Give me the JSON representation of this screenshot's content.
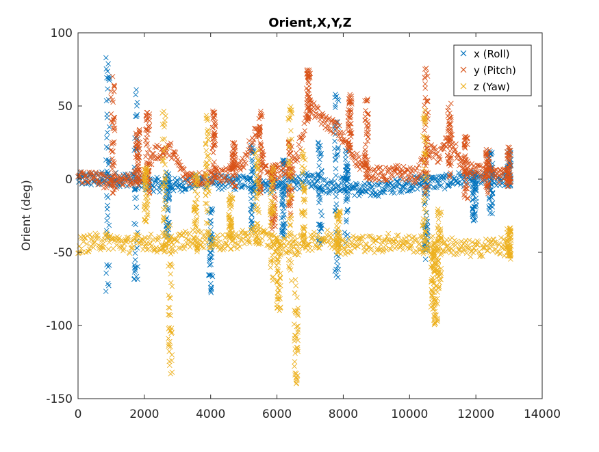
{
  "chart_data": {
    "type": "scatter",
    "title": "Orient,X,Y,Z",
    "xlabel": "",
    "ylabel": "Orient (deg)",
    "xlim": [
      0,
      14000
    ],
    "ylim": [
      -150,
      100
    ],
    "xticks": [
      0,
      2000,
      4000,
      6000,
      8000,
      10000,
      12000,
      14000
    ],
    "xtick_labels": [
      "0",
      "2000",
      "4000",
      "6000",
      "8000",
      "10000",
      "12000",
      "14000"
    ],
    "yticks": [
      100,
      50,
      0,
      -50,
      -100,
      -150
    ],
    "ytick_labels": [
      "100",
      "50",
      "0",
      "-50",
      "-100",
      "-150"
    ],
    "marker": "x",
    "grid": false,
    "legend_position": "top-right",
    "series": [
      {
        "name": "x (Roll)",
        "color": "#0072BD",
        "base": [
          [
            0,
            0
          ],
          [
            500,
            0
          ],
          [
            1000,
            0
          ],
          [
            1500,
            0
          ],
          [
            2000,
            -3
          ],
          [
            2500,
            -4
          ],
          [
            3000,
            -4
          ],
          [
            3500,
            -2
          ],
          [
            4000,
            -1
          ],
          [
            4500,
            -3
          ],
          [
            5000,
            -2
          ],
          [
            5500,
            -4
          ],
          [
            6000,
            -5
          ],
          [
            6500,
            -3
          ],
          [
            7000,
            0
          ],
          [
            7500,
            -5
          ],
          [
            8000,
            -3
          ],
          [
            8500,
            -8
          ],
          [
            9000,
            -7
          ],
          [
            9500,
            -5
          ],
          [
            10000,
            -3
          ],
          [
            10500,
            -2
          ],
          [
            11000,
            -2
          ],
          [
            11500,
            0
          ],
          [
            12000,
            0
          ],
          [
            12500,
            0
          ],
          [
            13000,
            0
          ]
        ],
        "noise": 5,
        "spikes": [
          {
            "x": 900,
            "lo": -77,
            "hi": 88
          },
          {
            "x": 1750,
            "lo": -70,
            "hi": 64
          },
          {
            "x": 2700,
            "lo": -40,
            "hi": 5
          },
          {
            "x": 4000,
            "lo": -78,
            "hi": -18
          },
          {
            "x": 5250,
            "lo": -35,
            "hi": 25
          },
          {
            "x": 6200,
            "lo": -40,
            "hi": 15
          },
          {
            "x": 7300,
            "lo": -45,
            "hi": 30
          },
          {
            "x": 7800,
            "lo": -78,
            "hi": 58
          },
          {
            "x": 8100,
            "lo": -45,
            "hi": 20
          },
          {
            "x": 10500,
            "lo": -55,
            "hi": 5
          },
          {
            "x": 11950,
            "lo": -30,
            "hi": 5
          },
          {
            "x": 12450,
            "lo": -25,
            "hi": 20
          },
          {
            "x": 13000,
            "lo": -5,
            "hi": 20
          }
        ]
      },
      {
        "name": "y (Pitch)",
        "color": "#D95319",
        "base": [
          [
            0,
            2
          ],
          [
            500,
            1
          ],
          [
            900,
            -2
          ],
          [
            1050,
            -5
          ],
          [
            1200,
            0
          ],
          [
            1600,
            0
          ],
          [
            2000,
            2
          ],
          [
            2300,
            18
          ],
          [
            2800,
            20
          ],
          [
            3200,
            3
          ],
          [
            3600,
            0
          ],
          [
            4000,
            2
          ],
          [
            4500,
            3
          ],
          [
            5000,
            12
          ],
          [
            5400,
            35
          ],
          [
            5700,
            2
          ],
          [
            6000,
            5
          ],
          [
            6500,
            8
          ],
          [
            7000,
            50
          ],
          [
            7400,
            40
          ],
          [
            7800,
            35
          ],
          [
            8200,
            20
          ],
          [
            8700,
            5
          ],
          [
            9200,
            3
          ],
          [
            9700,
            5
          ],
          [
            10200,
            2
          ],
          [
            10600,
            20
          ],
          [
            10900,
            15
          ],
          [
            11200,
            30
          ],
          [
            11600,
            8
          ],
          [
            12000,
            5
          ],
          [
            12500,
            3
          ],
          [
            13000,
            2
          ]
        ],
        "noise": 5,
        "spikes": [
          {
            "x": 1050,
            "lo": -12,
            "hi": 72
          },
          {
            "x": 1800,
            "lo": -5,
            "hi": 35
          },
          {
            "x": 2100,
            "lo": -10,
            "hi": 48
          },
          {
            "x": 4100,
            "lo": 0,
            "hi": 47
          },
          {
            "x": 4700,
            "lo": -5,
            "hi": 25
          },
          {
            "x": 5500,
            "lo": -10,
            "hi": 48
          },
          {
            "x": 5900,
            "lo": -35,
            "hi": 10
          },
          {
            "x": 6400,
            "lo": -25,
            "hi": 28
          },
          {
            "x": 6950,
            "lo": 40,
            "hi": 76
          },
          {
            "x": 8200,
            "lo": 20,
            "hi": 58
          },
          {
            "x": 8700,
            "lo": 0,
            "hi": 55
          },
          {
            "x": 10500,
            "lo": -10,
            "hi": 76
          },
          {
            "x": 11200,
            "lo": 0,
            "hi": 52
          },
          {
            "x": 11700,
            "lo": -15,
            "hi": 30
          },
          {
            "x": 12350,
            "lo": -10,
            "hi": 22
          },
          {
            "x": 13000,
            "lo": -5,
            "hi": 22
          }
        ]
      },
      {
        "name": "z (Yaw)",
        "color": "#EDB120",
        "base": [
          [
            0,
            -45
          ],
          [
            500,
            -43
          ],
          [
            1000,
            -42
          ],
          [
            1500,
            -45
          ],
          [
            2000,
            -42
          ],
          [
            2500,
            -45
          ],
          [
            3000,
            -43
          ],
          [
            3500,
            -40
          ],
          [
            4000,
            -42
          ],
          [
            4500,
            -44
          ],
          [
            5000,
            -40
          ],
          [
            5500,
            -38
          ],
          [
            6000,
            -45
          ],
          [
            6500,
            -45
          ],
          [
            7000,
            -43
          ],
          [
            7500,
            -40
          ],
          [
            8000,
            -46
          ],
          [
            8500,
            -43
          ],
          [
            9000,
            -45
          ],
          [
            9500,
            -42
          ],
          [
            10000,
            -44
          ],
          [
            10500,
            -45
          ],
          [
            11000,
            -44
          ],
          [
            11500,
            -47
          ],
          [
            12000,
            -48
          ],
          [
            12500,
            -45
          ],
          [
            13000,
            -47
          ]
        ],
        "noise": 6,
        "spikes": [
          {
            "x": 2050,
            "lo": -30,
            "hi": 10
          },
          {
            "x": 2600,
            "lo": -50,
            "hi": 50
          },
          {
            "x": 2780,
            "lo": -135,
            "hi": -30
          },
          {
            "x": 3550,
            "lo": -50,
            "hi": 5
          },
          {
            "x": 3900,
            "lo": -40,
            "hi": 45
          },
          {
            "x": 4600,
            "lo": -40,
            "hi": -10
          },
          {
            "x": 5400,
            "lo": -45,
            "hi": 25
          },
          {
            "x": 5850,
            "lo": -70,
            "hi": 10
          },
          {
            "x": 6050,
            "lo": -90,
            "hi": -40
          },
          {
            "x": 6400,
            "lo": -70,
            "hi": 50
          },
          {
            "x": 6580,
            "lo": -140,
            "hi": -50
          },
          {
            "x": 6800,
            "lo": -45,
            "hi": 20
          },
          {
            "x": 7850,
            "lo": -50,
            "hi": -20
          },
          {
            "x": 10450,
            "lo": -60,
            "hi": 50
          },
          {
            "x": 10700,
            "lo": -90,
            "hi": -50
          },
          {
            "x": 10790,
            "lo": -100,
            "hi": -40
          },
          {
            "x": 10900,
            "lo": -75,
            "hi": -20
          },
          {
            "x": 13000,
            "lo": -55,
            "hi": -32
          }
        ]
      }
    ]
  }
}
